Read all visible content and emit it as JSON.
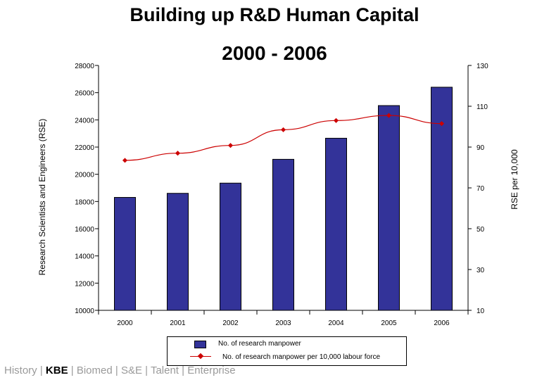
{
  "chart_data": {
    "type": "bar",
    "title": "Building up R&D Human Capital",
    "subtitle": "2000 - 2006",
    "categories": [
      "2000",
      "2001",
      "2002",
      "2003",
      "2004",
      "2005",
      "2006"
    ],
    "series": [
      {
        "name": "No. of research manpower",
        "type": "bar",
        "axis": "left",
        "values": [
          18300,
          18600,
          19350,
          21100,
          22650,
          25050,
          26400
        ]
      },
      {
        "name": "No. of research manpower per 10,000 labour force",
        "type": "line",
        "axis": "right",
        "values": [
          83.5,
          87,
          90.8,
          98.5,
          103,
          105.5,
          101.5
        ]
      }
    ],
    "ylabel": "Research Scientists and Engineers (RSE)",
    "y2label": "RSE per 10,000",
    "ylim": [
      10000,
      28000
    ],
    "y2lim": [
      10,
      130
    ],
    "yticks": [
      "10000",
      "12000",
      "14000",
      "16000",
      "18000",
      "20000",
      "22000",
      "24000",
      "26000",
      "28000"
    ],
    "y2ticks": [
      "10",
      "30",
      "50",
      "70",
      "90",
      "110",
      "130"
    ],
    "legend_position": "bottom"
  },
  "colors": {
    "bar": "#333399",
    "line": "#cc0000"
  },
  "footer": {
    "items": [
      "History",
      "KBE",
      "Biomed",
      "S&E",
      "Talent",
      "Enterprise"
    ],
    "active": "KBE"
  }
}
